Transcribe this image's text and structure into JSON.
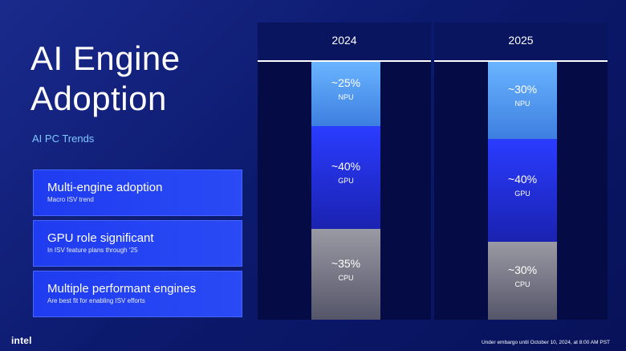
{
  "slide": {
    "title_line1": "AI Engine",
    "title_line2": "Adoption",
    "subtitle": "AI PC Trends"
  },
  "cards": [
    {
      "heading": "Multi-engine adoption",
      "subtext": "Macro ISV trend"
    },
    {
      "heading": "GPU role significant",
      "subtext": "In ISV feature plans through ‘25"
    },
    {
      "heading": "Multiple performant engines",
      "subtext": "Are best fit for enabling ISV efforts"
    }
  ],
  "chart_data": {
    "type": "bar",
    "stacked": true,
    "normalized": true,
    "categories": [
      "2024",
      "2025"
    ],
    "series": [
      {
        "name": "NPU",
        "values": [
          25,
          30
        ],
        "labels": [
          "~25%",
          "~30%"
        ],
        "color": "#5aa6ff"
      },
      {
        "name": "GPU",
        "values": [
          40,
          40
        ],
        "labels": [
          "~40%",
          "~40%"
        ],
        "color": "#2233e8"
      },
      {
        "name": "CPU",
        "values": [
          35,
          30
        ],
        "labels": [
          "~35%",
          "~30%"
        ],
        "color": "#7a7a88"
      }
    ],
    "title": "",
    "xlabel": "",
    "ylabel": "",
    "ylim": [
      0,
      100
    ]
  },
  "footer": {
    "logo": "intel",
    "embargo": "Under embargo until October 10, 2024, at 8:00 AM PST"
  },
  "colors": {
    "background": "#0c1a6e",
    "accent": "#7fc7ff",
    "card": "#2342f2"
  }
}
